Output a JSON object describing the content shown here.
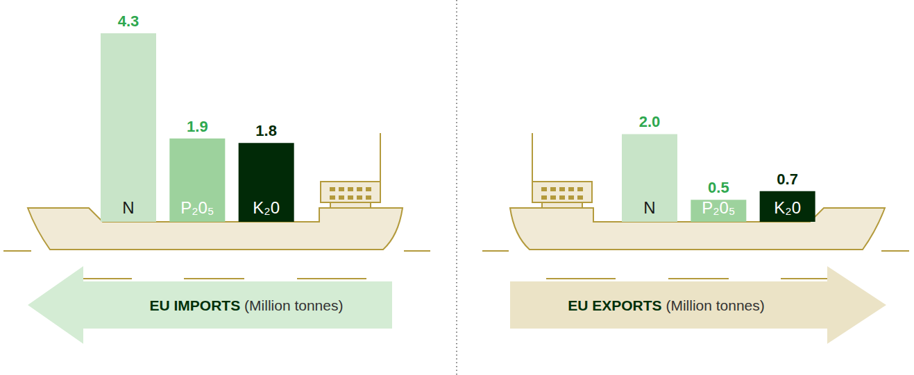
{
  "chart_data": [
    {
      "type": "bar",
      "title": "EU IMPORTS",
      "subtitle": "(Million tonnes)",
      "categories": [
        "N",
        "P₂0₅",
        "K₂0"
      ],
      "values": [
        4.3,
        1.9,
        1.8
      ],
      "colors": [
        "#c8e4c8",
        "#9dd29d",
        "#012a07"
      ],
      "ylim": [
        0,
        4.3
      ],
      "data_labels": true,
      "tick_labels": false
    },
    {
      "type": "bar",
      "title": "EU EXPORTS",
      "subtitle": "(Million tonnes)",
      "categories": [
        "N",
        "P₂0₅",
        "K₂0"
      ],
      "values": [
        2.0,
        0.5,
        0.7
      ],
      "value_labels": [
        "2.0",
        "0.5",
        "0.7"
      ],
      "colors": [
        "#c8e4c8",
        "#9dd29d",
        "#012a07"
      ],
      "ylim": [
        0,
        4.3
      ],
      "data_labels": true,
      "tick_labels": false
    }
  ]
}
